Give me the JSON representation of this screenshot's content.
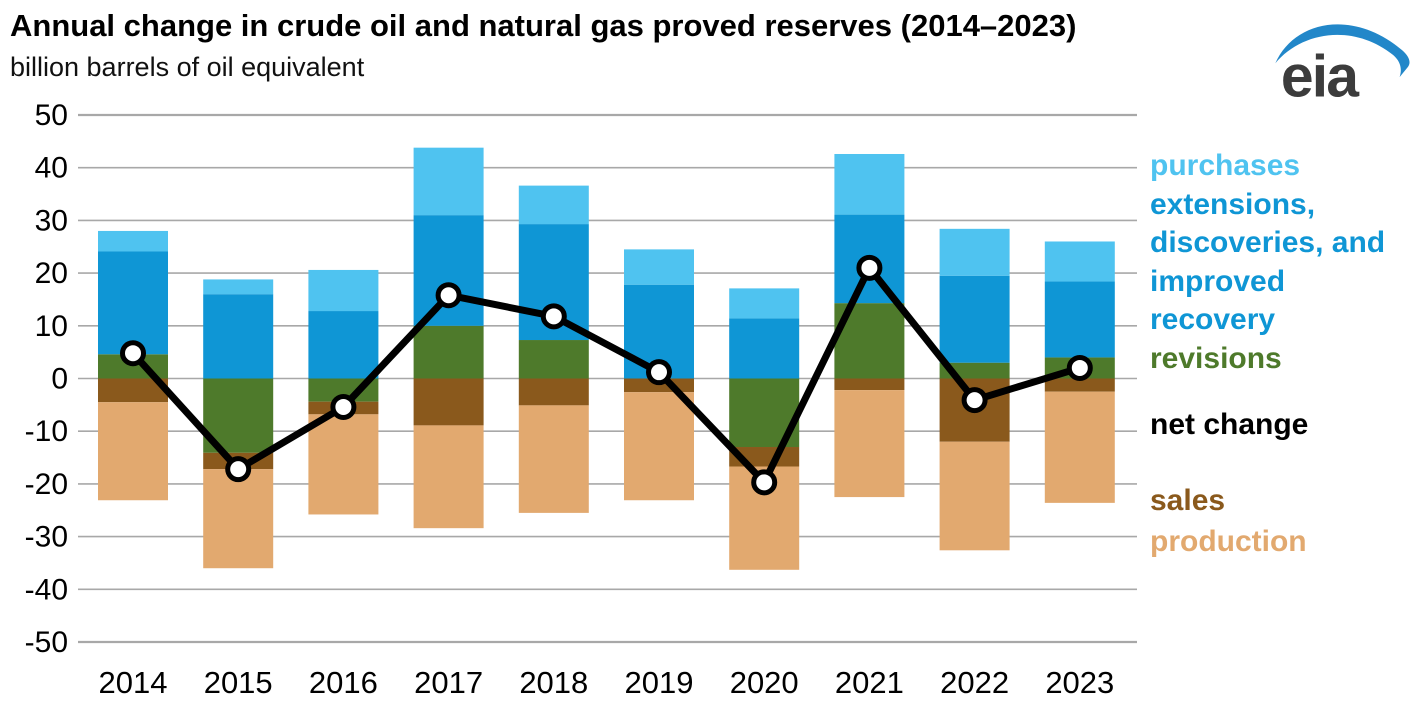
{
  "title": "Annual change in crude oil and natural gas proved reserves (2014–2023)",
  "subtitle": "billion barrels of oil equivalent",
  "logo": {
    "text": "eia"
  },
  "colors": {
    "purchases": "#4FC3F0",
    "extensions": "#0F96D5",
    "revisions": "#4E7A2B",
    "sales": "#8A591C",
    "production": "#E2A96F",
    "net_change": "#000000",
    "gridline": "#A8A8A8",
    "axis_text": "#000000",
    "logo_text": "#3C3C3C",
    "logo_swoosh": "#2287C9"
  },
  "chart_data": {
    "type": "bar",
    "subtype": "stacked-bars-with-line",
    "title": "Annual change in crude oil and natural gas proved reserves (2014–2023)",
    "ylabel": "billion barrels of oil equivalent",
    "xlabel": "",
    "categories": [
      "2014",
      "2015",
      "2016",
      "2017",
      "2018",
      "2019",
      "2020",
      "2021",
      "2022",
      "2023"
    ],
    "series": [
      {
        "name": "purchases",
        "color_key": "purchases",
        "values": [
          3.9,
          2.8,
          7.8,
          12.8,
          7.3,
          6.7,
          5.7,
          11.5,
          8.9,
          7.6
        ]
      },
      {
        "name": "extensions, discoveries, and improved recovery",
        "color_key": "extensions",
        "values": [
          19.5,
          16.0,
          12.8,
          21.0,
          22.0,
          17.8,
          11.4,
          16.8,
          16.5,
          14.4
        ]
      },
      {
        "name": "revisions",
        "color_key": "revisions",
        "values": [
          4.6,
          -14.1,
          -4.4,
          10.0,
          7.3,
          0.0,
          -13.0,
          14.3,
          3.0,
          4.0
        ]
      },
      {
        "name": "sales",
        "color_key": "sales",
        "values": [
          -4.5,
          -3.1,
          -2.4,
          -8.9,
          -5.1,
          -2.6,
          -3.7,
          -2.2,
          -12.0,
          -2.5
        ]
      },
      {
        "name": "production",
        "color_key": "production",
        "values": [
          -18.6,
          -18.8,
          -19.0,
          -19.5,
          -20.4,
          -20.5,
          -19.6,
          -20.3,
          -20.6,
          -21.1
        ]
      }
    ],
    "line_series": {
      "name": "net change",
      "color_key": "net_change",
      "values": [
        4.8,
        -17.2,
        -5.4,
        15.8,
        11.8,
        1.2,
        -19.7,
        21.0,
        -4.1,
        2.0
      ]
    },
    "ylim": [
      -50,
      50
    ],
    "ytick_step": 10,
    "yticks": [
      50,
      40,
      30,
      20,
      10,
      0,
      -10,
      -20,
      -30,
      -40,
      -50
    ],
    "grid": true,
    "legend_position": "right",
    "stack_order_positive": [
      "revisions",
      "extensions",
      "purchases"
    ],
    "stack_order_negative": [
      "revisions",
      "sales",
      "production"
    ]
  },
  "legend": {
    "blocks": [
      {
        "lines": [
          {
            "text": "purchases",
            "color_key": "purchases"
          },
          {
            "text": "extensions,",
            "color_key": "extensions"
          },
          {
            "text": "discoveries, and",
            "color_key": "extensions"
          },
          {
            "text": "improved",
            "color_key": "extensions"
          },
          {
            "text": "recovery",
            "color_key": "extensions"
          },
          {
            "text": "revisions",
            "color_key": "revisions"
          }
        ]
      },
      {
        "lines": [
          {
            "text": "net change",
            "color_key": "net_change"
          }
        ]
      },
      {
        "lines": [
          {
            "text": "sales",
            "color_key": "sales"
          },
          {
            "text": "production",
            "color_key": "production"
          }
        ]
      }
    ]
  }
}
